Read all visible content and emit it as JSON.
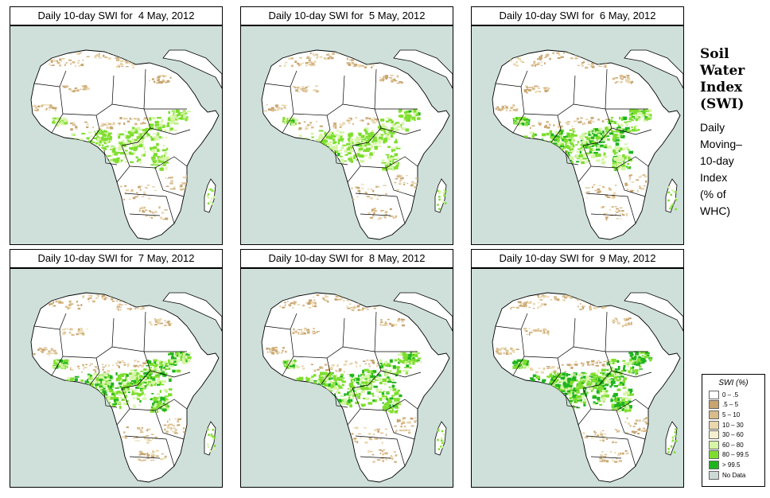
{
  "panels": [
    {
      "title": "Daily 10-day SWI for  4 May, 2012",
      "wetness": 0.55
    },
    {
      "title": "Daily 10-day SWI for  5 May, 2012",
      "wetness": 0.58
    },
    {
      "title": "Daily 10-day SWI for  6 May, 2012",
      "wetness": 0.7
    },
    {
      "title": "Daily 10-day SWI for  7 May, 2012",
      "wetness": 0.8
    },
    {
      "title": "Daily 10-day SWI for  8 May, 2012",
      "wetness": 0.72
    },
    {
      "title": "Daily 10-day SWI for  9 May, 2012",
      "wetness": 0.85
    }
  ],
  "side": {
    "title_lines": [
      "Soil",
      "Water",
      "Index",
      "(SWI)"
    ],
    "sub_lines": [
      "Daily",
      "Moving–",
      "10-day",
      "Index",
      "",
      "(% of",
      " WHC)"
    ]
  },
  "legend": {
    "title": "SWI (%)",
    "items": [
      {
        "label": "0 – .5",
        "color": "#ffffff"
      },
      {
        "label": ".5 – 5",
        "color": "#c8a46e"
      },
      {
        "label": "5 – 10",
        "color": "#d9bc8c"
      },
      {
        "label": "10 – 30",
        "color": "#ead7ae"
      },
      {
        "label": "30 – 60",
        "color": "#f6efcf"
      },
      {
        "label": "60 – 80",
        "color": "#d6f5a6"
      },
      {
        "label": "80 – 99.5",
        "color": "#7ede2e"
      },
      {
        "label": "> 99.5",
        "color": "#1fb41f"
      },
      {
        "label": "No Data",
        "color": "#cdd9d5"
      }
    ]
  },
  "colors": {
    "ocean": "#cfe0da",
    "land": "#ffffff",
    "border": "#000000"
  }
}
